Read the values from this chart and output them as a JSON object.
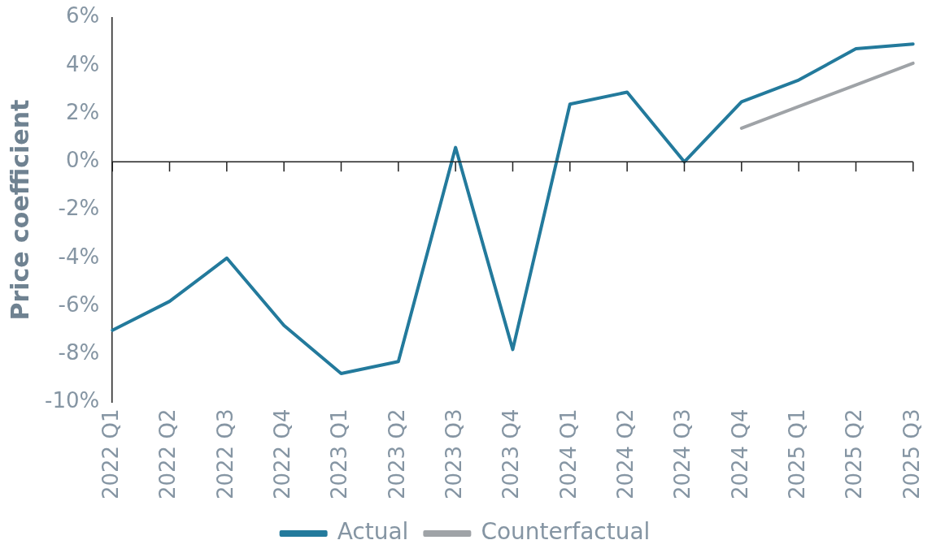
{
  "chart_data": {
    "type": "line",
    "ylabel": "Price coefficient",
    "categories": [
      "2022 Q1",
      "2022 Q2",
      "2022 Q3",
      "2022 Q4",
      "2023 Q1",
      "2023 Q2",
      "2023 Q3",
      "2023 Q4",
      "2024 Q1",
      "2024 Q2",
      "2024 Q3",
      "2024 Q4",
      "2025 Q1",
      "2025 Q2",
      "2025 Q3"
    ],
    "series": [
      {
        "name": "Actual",
        "color": "#237a9c",
        "values": [
          -7.0,
          -5.8,
          -4.0,
          -6.8,
          -8.8,
          -8.3,
          0.6,
          -7.8,
          2.4,
          2.9,
          0.0,
          2.5,
          3.4,
          4.7,
          4.9
        ]
      },
      {
        "name": "Counterfactual",
        "color": "#9fa3a7",
        "values": [
          null,
          null,
          null,
          null,
          null,
          null,
          null,
          null,
          null,
          null,
          null,
          1.4,
          2.3,
          3.2,
          4.1
        ]
      }
    ],
    "ylim": [
      -10,
      6
    ],
    "yticks": [
      {
        "value": -10,
        "label": "-10%"
      },
      {
        "value": -8,
        "label": "-8%"
      },
      {
        "value": -6,
        "label": "-6%"
      },
      {
        "value": -4,
        "label": "-4%"
      },
      {
        "value": -2,
        "label": "-2%"
      },
      {
        "value": 0,
        "label": "0%"
      },
      {
        "value": 2,
        "label": "2%"
      },
      {
        "value": 4,
        "label": "4%"
      },
      {
        "value": 6,
        "label": "6%"
      }
    ],
    "ref_lines": [
      {
        "axis": "y",
        "value": 0,
        "color": "#222222",
        "line_style": "solid"
      }
    ],
    "grid": false,
    "legend": "bottom",
    "marker": "none",
    "line_style": "solid"
  }
}
